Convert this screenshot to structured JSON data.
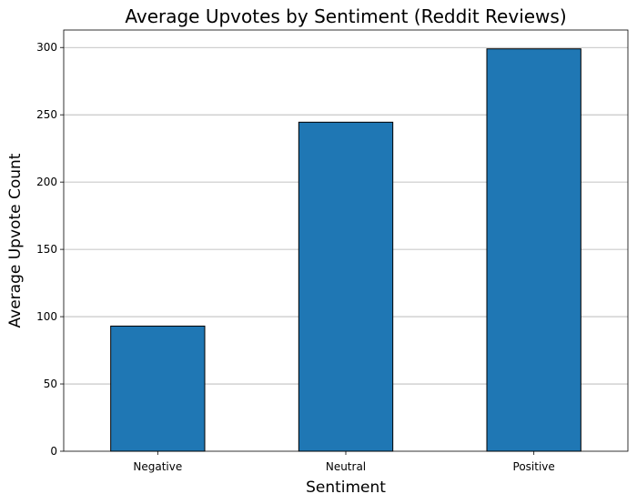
{
  "chart_data": {
    "type": "bar",
    "title": "Average Upvotes by Sentiment (Reddit Reviews)",
    "xlabel": "Sentiment",
    "ylabel": "Average Upvote Count",
    "categories": [
      "Negative",
      "Neutral",
      "Positive"
    ],
    "values": [
      93,
      244.5,
      299
    ],
    "ylim": [
      0,
      313
    ],
    "yticks": [
      0,
      50,
      100,
      150,
      200,
      250,
      300
    ],
    "grid": "y",
    "bar_color": "#1f77b4",
    "bar_edge_color": "#000000"
  }
}
